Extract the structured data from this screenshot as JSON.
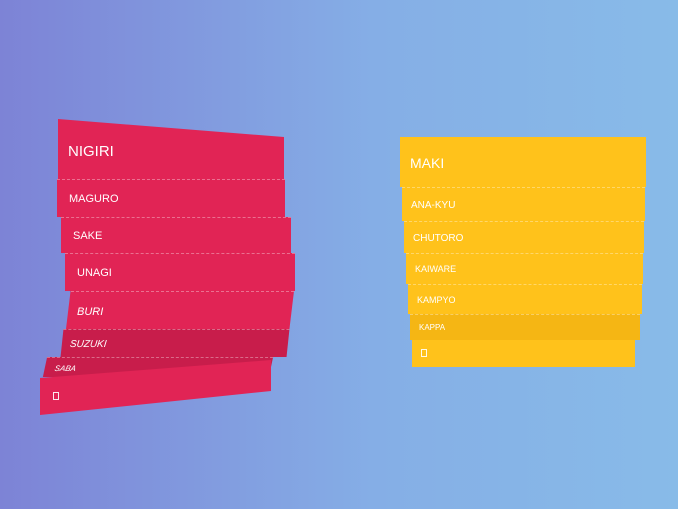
{
  "nigiri": {
    "title": "NIGIRI",
    "items": [
      "MAGURO",
      "SAKE",
      "UNAGI",
      "BURI",
      "SUZUKI",
      "SABA"
    ],
    "footer_icon": "unknown-glyph-icon",
    "color": "#e12455"
  },
  "maki": {
    "title": "MAKI",
    "items": [
      "ANA-KYU",
      "CHUTORO",
      "KAIWARE",
      "KAMPYO",
      "KAPPA"
    ],
    "footer_icon": "unknown-glyph-icon",
    "color": "#ffc21b"
  }
}
